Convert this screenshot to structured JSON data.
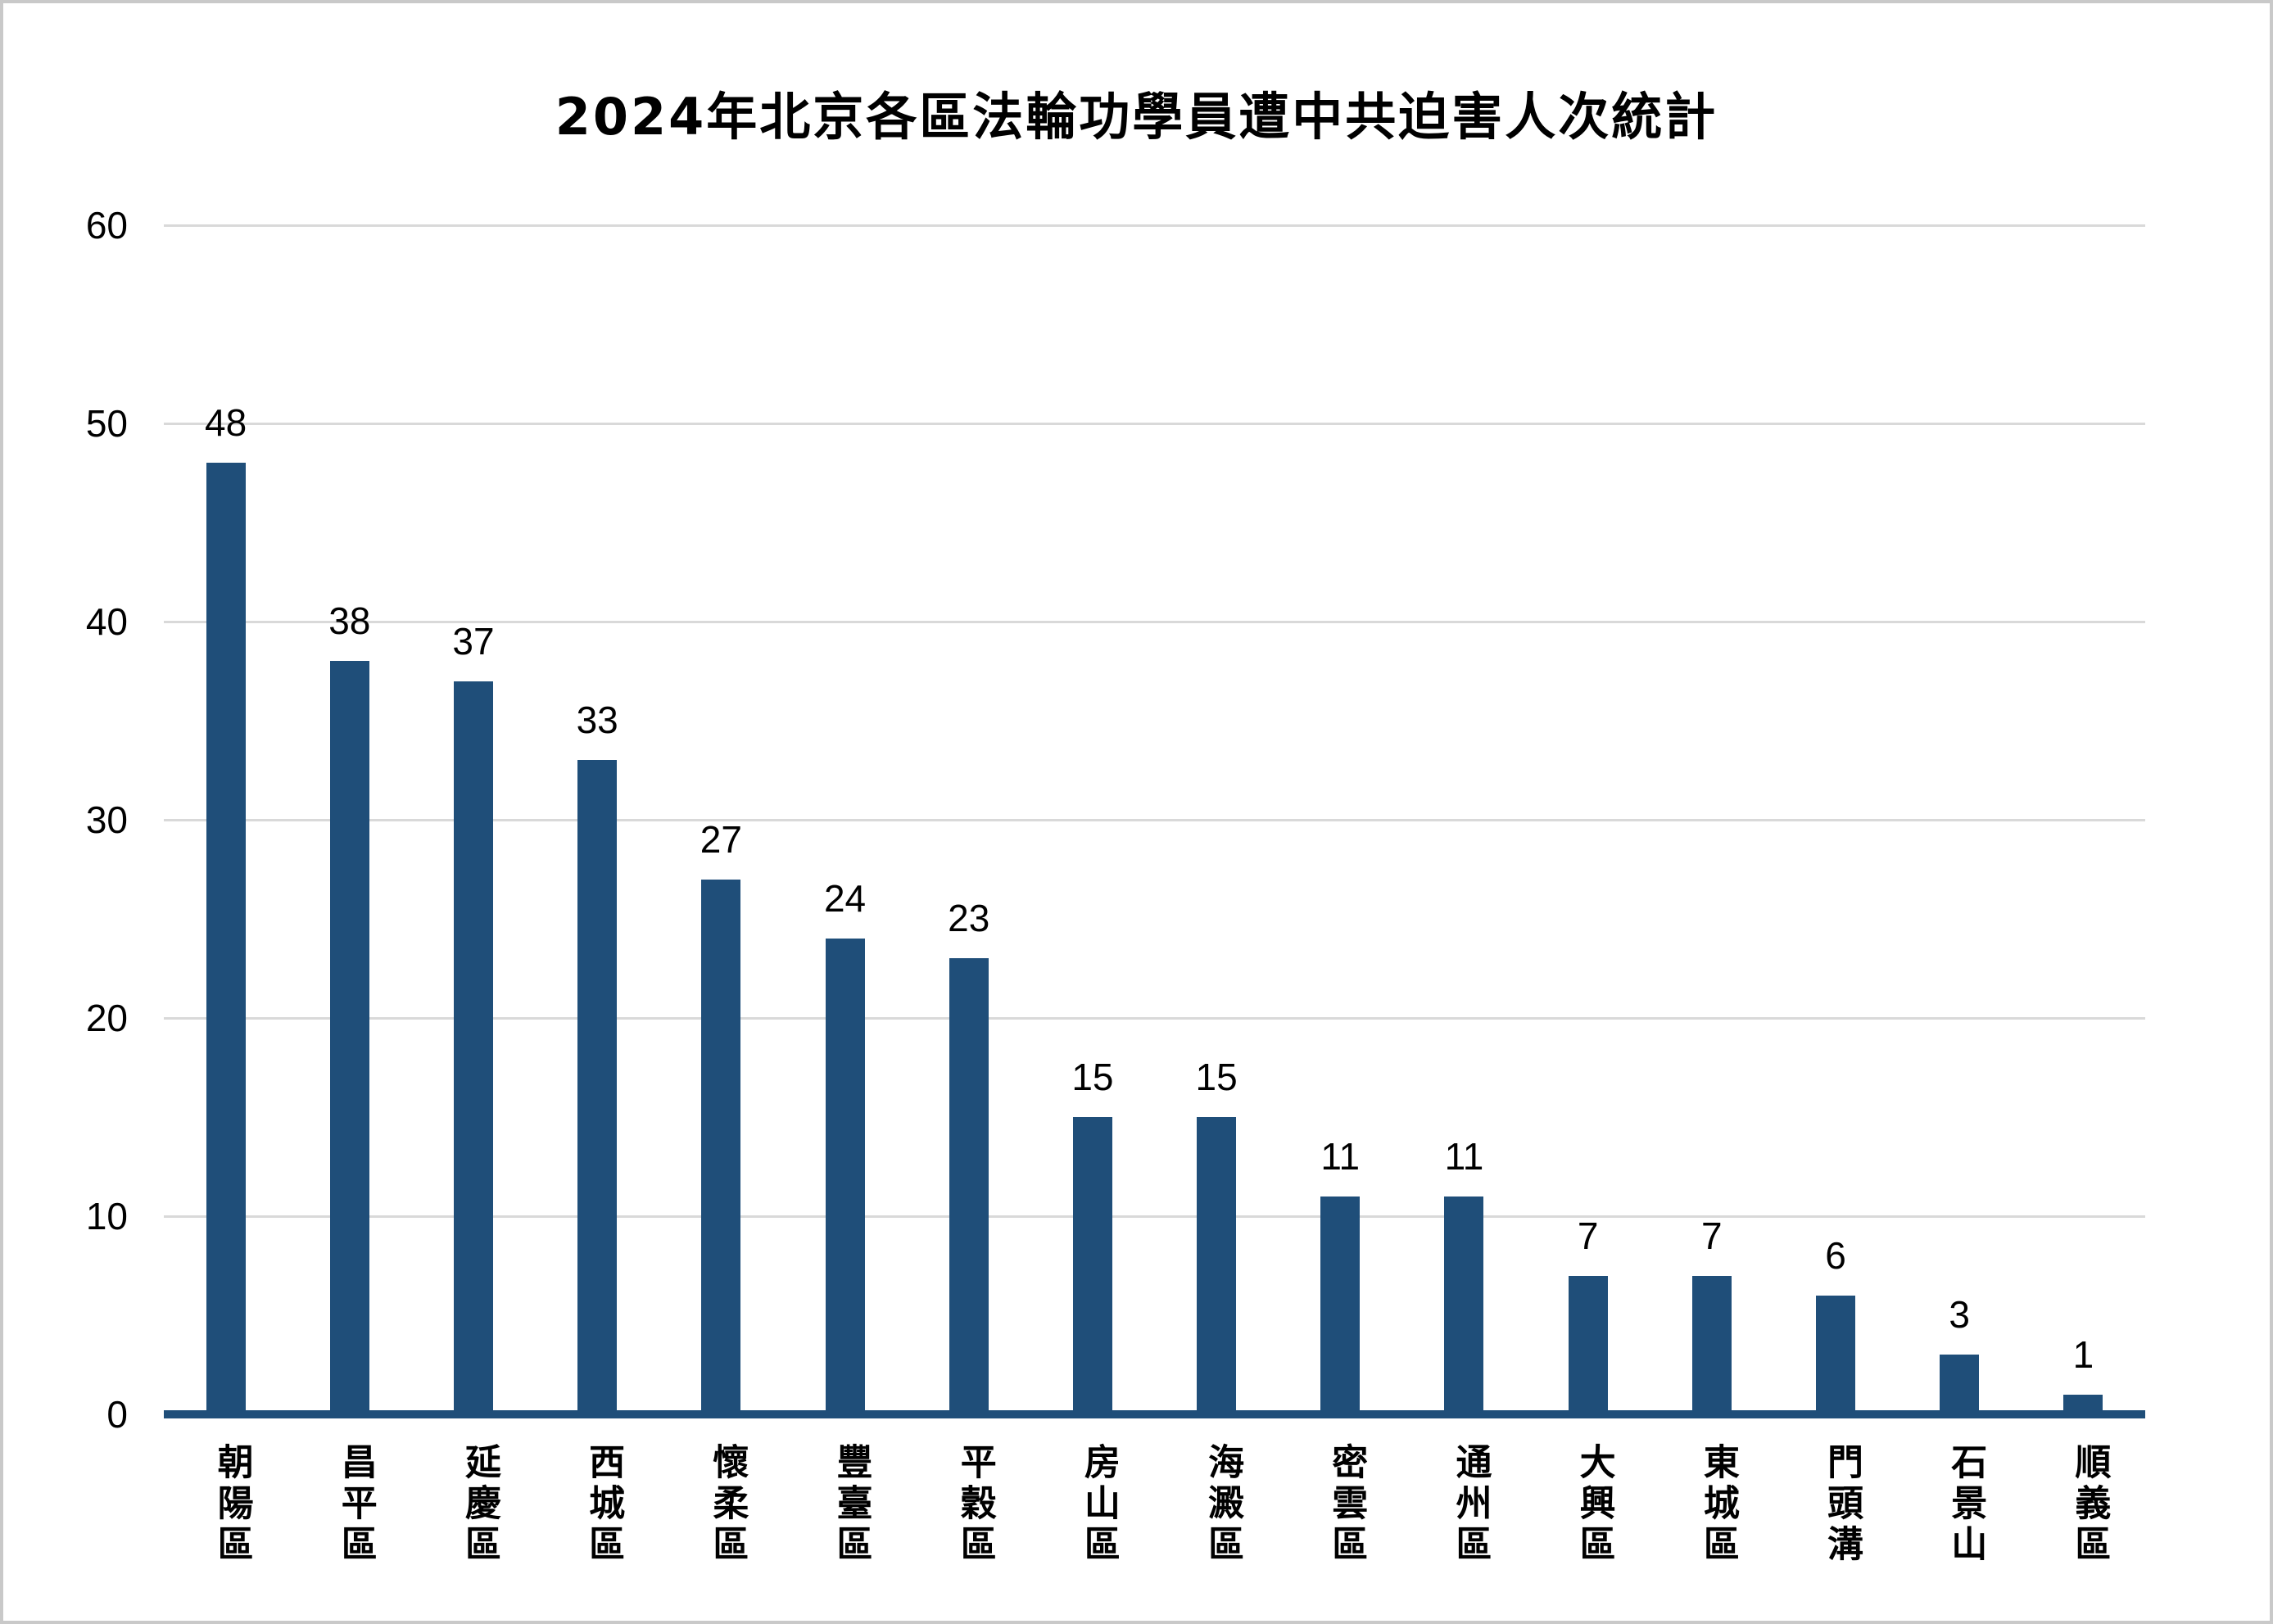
{
  "page": {
    "background": "#FFFFFF",
    "border_color": "#C9C9C9"
  },
  "chart_data": {
    "type": "bar",
    "title": "2024年北京各區法輪功學員遭中共迫害人次統計",
    "categories": [
      "朝陽區",
      "昌平區",
      "延慶區",
      "西城區",
      "懷柔區",
      "豐臺區",
      "平穀區",
      "房山區",
      "海澱區",
      "密雲區",
      "通州區",
      "大興區",
      "東城區",
      "門頭溝",
      "石景山",
      "順義區"
    ],
    "values": [
      48,
      38,
      37,
      33,
      27,
      24,
      23,
      15,
      15,
      11,
      11,
      7,
      7,
      6,
      3,
      1
    ],
    "xlabel": "",
    "ylabel": "",
    "ylim": [
      0,
      60
    ],
    "yticks": [
      0,
      10,
      20,
      30,
      40,
      50,
      60
    ],
    "grid": true,
    "legend": "none",
    "bar_color": "#1F4E79",
    "axis_line_color": "#1F4E79",
    "gridline_color": "#D9D9D9",
    "text_color": "#000000"
  }
}
